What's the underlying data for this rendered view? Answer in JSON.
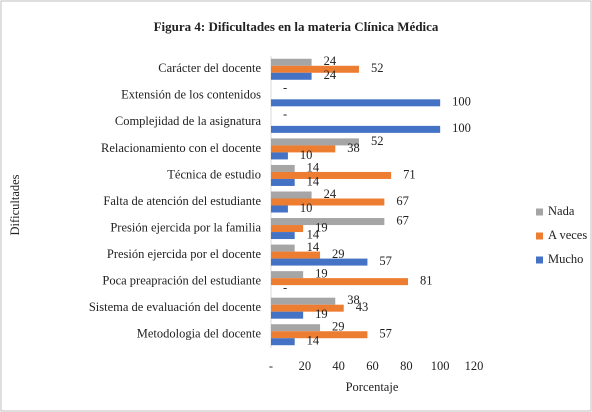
{
  "chart_data": {
    "type": "hbar",
    "title": "Figura 4: Dificultades en la materia Clínica Médica",
    "x_label": "Porcentaje",
    "y_label": "Dificultades",
    "categories": [
      "Carácter del docente",
      "Extensión de los contenidos",
      "Complejidad de la asignatura",
      "Relacionamiento con el docente",
      "Técnica de estudio",
      "Falta de atención del estudiante",
      "Presión ejercida por la familia",
      "Presión ejercida por el docente",
      "Poca preapración del estudiante",
      "Sistema de evaluación del docente",
      "Metodologia del docente"
    ],
    "series": [
      {
        "name": "Nada",
        "color": "#a5a5a5",
        "values": [
          24,
          0,
          0,
          52,
          14,
          24,
          67,
          14,
          19,
          38,
          29
        ],
        "value_labels": [
          "24",
          "-",
          "-",
          "52",
          "14",
          "24",
          "67",
          "14",
          "19",
          "38",
          "29"
        ]
      },
      {
        "name": "A veces",
        "color": "#ed7d31",
        "values": [
          52,
          null,
          null,
          38,
          71,
          67,
          19,
          29,
          81,
          43,
          57
        ],
        "value_labels": [
          "52",
          null,
          null,
          "38",
          "71",
          "67",
          "19",
          "29",
          "81",
          "43",
          "57"
        ]
      },
      {
        "name": "Mucho",
        "color": "#4472c4",
        "values": [
          24,
          100,
          100,
          10,
          14,
          10,
          14,
          57,
          0,
          19,
          14
        ],
        "value_labels": [
          "24",
          "100",
          "100",
          "10",
          "14",
          "10",
          "14",
          "57",
          "-",
          "19",
          "14"
        ]
      }
    ],
    "xlim": [
      0,
      120
    ],
    "xticks": [
      {
        "value": 0,
        "label": "-"
      },
      20,
      40,
      60,
      80,
      100,
      120
    ],
    "legend": "right"
  }
}
